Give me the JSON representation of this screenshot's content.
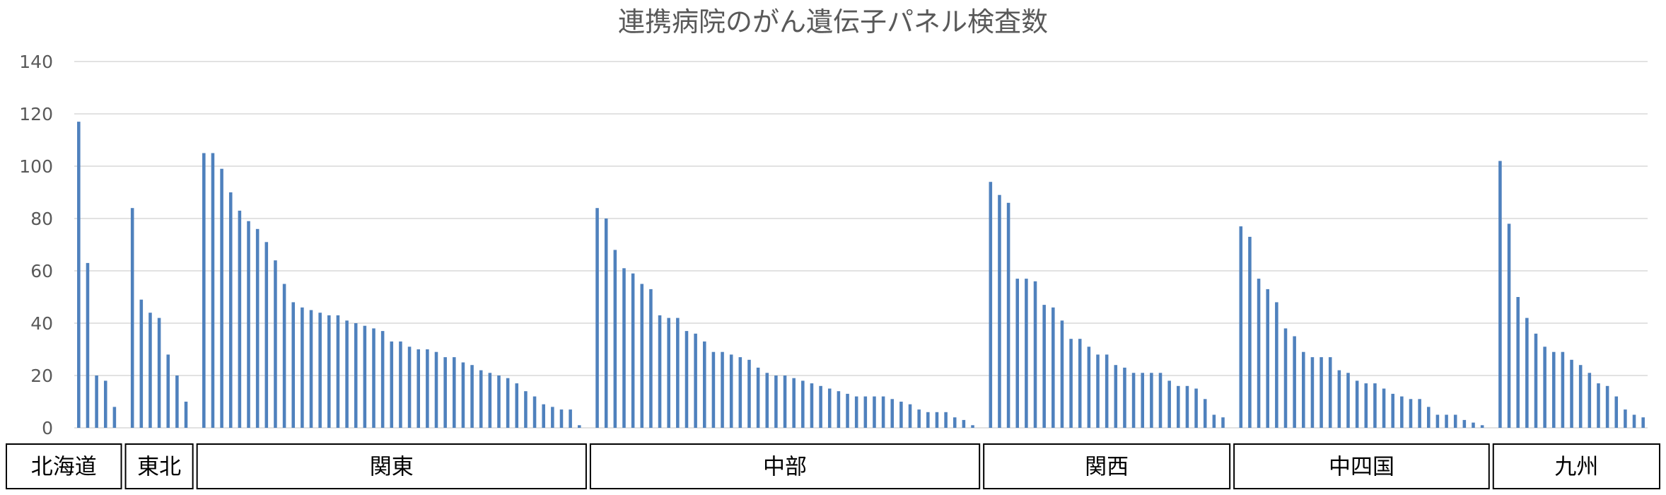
{
  "chart_data": {
    "type": "bar",
    "title": "連携病院のがん遺伝子パネル検査数",
    "xlabel": "",
    "ylabel": "",
    "ylim": [
      0,
      140
    ],
    "yticks": [
      0,
      20,
      40,
      60,
      80,
      100,
      120,
      140
    ],
    "grid": true,
    "legend": "none",
    "bar_color": "#4f81bd",
    "regions": [
      {
        "name": "北海道",
        "values": [
          117,
          63,
          20,
          18,
          8
        ]
      },
      {
        "name": "東北",
        "values": [
          84,
          49,
          44,
          42,
          28,
          20,
          10
        ]
      },
      {
        "name": "関東",
        "values": [
          105,
          105,
          99,
          90,
          83,
          79,
          76,
          71,
          64,
          55,
          48,
          46,
          45,
          44,
          43,
          43,
          41,
          40,
          39,
          38,
          37,
          33,
          33,
          31,
          30,
          30,
          29,
          27,
          27,
          25,
          24,
          22,
          21,
          20,
          19,
          17,
          14,
          12,
          9,
          8,
          7,
          7,
          1
        ]
      },
      {
        "name": "中部",
        "values": [
          84,
          80,
          68,
          61,
          59,
          55,
          53,
          43,
          42,
          42,
          37,
          36,
          33,
          29,
          29,
          28,
          27,
          26,
          23,
          21,
          20,
          20,
          19,
          18,
          17,
          16,
          15,
          14,
          13,
          12,
          12,
          12,
          12,
          11,
          10,
          9,
          7,
          6,
          6,
          6,
          4,
          3,
          1
        ]
      },
      {
        "name": "関西",
        "values": [
          94,
          89,
          86,
          57,
          57,
          56,
          47,
          46,
          41,
          34,
          34,
          31,
          28,
          28,
          24,
          23,
          21,
          21,
          21,
          21,
          18,
          16,
          16,
          15,
          11,
          5,
          4
        ]
      },
      {
        "name": "中四国",
        "values": [
          77,
          73,
          57,
          53,
          48,
          38,
          35,
          29,
          27,
          27,
          27,
          22,
          21,
          18,
          17,
          17,
          15,
          13,
          12,
          11,
          11,
          8,
          5,
          5,
          5,
          3,
          2,
          1
        ]
      },
      {
        "name": "九州",
        "values": [
          102,
          78,
          50,
          42,
          36,
          31,
          29,
          29,
          26,
          24,
          21,
          17,
          16,
          12,
          7,
          5,
          4
        ]
      }
    ]
  }
}
